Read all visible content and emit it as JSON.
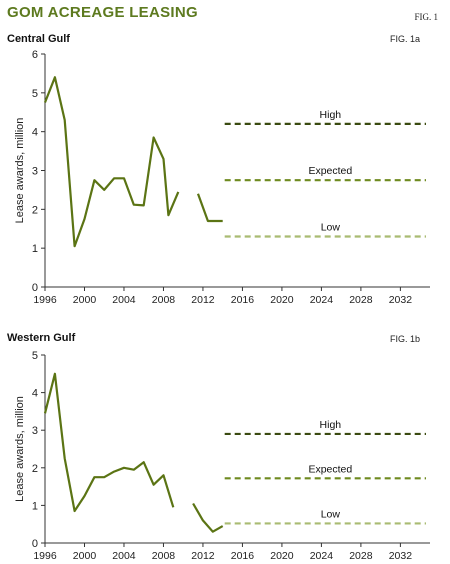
{
  "header": {
    "title": "GOM ACREAGE LEASING",
    "fig_label": "FIG. 1"
  },
  "colors": {
    "title": "#5d7a1f",
    "line": "#5b7414",
    "high": "#3a4a10",
    "expected": "#6e8a1f",
    "low": "#a9bb72",
    "axis": "#333333"
  },
  "chart_data": [
    {
      "type": "line",
      "title": "Central Gulf",
      "fig_label": "FIG. 1a",
      "ylabel": "Lease awards, million",
      "xlim": [
        1996,
        2035
      ],
      "ylim": [
        0,
        6
      ],
      "xticks": [
        1996,
        2000,
        2004,
        2008,
        2012,
        2016,
        2020,
        2024,
        2028,
        2032
      ],
      "yticks": [
        0,
        1,
        2,
        3,
        4,
        5,
        6
      ],
      "series": [
        {
          "segments": [
            [
              [
                1996,
                4.75
              ],
              [
                1997,
                5.4
              ],
              [
                1998,
                4.3
              ],
              [
                1999,
                1.05
              ],
              [
                2000,
                1.75
              ],
              [
                2001,
                2.75
              ],
              [
                2002,
                2.5
              ],
              [
                2003,
                2.8
              ],
              [
                2004,
                2.8
              ],
              [
                2005,
                2.12
              ],
              [
                2006,
                2.1
              ],
              [
                2007,
                3.85
              ],
              [
                2008,
                3.3
              ],
              [
                2008.5,
                1.85
              ],
              [
                2009.5,
                2.45
              ]
            ],
            [
              [
                2011.5,
                2.4
              ],
              [
                2012.5,
                1.7
              ],
              [
                2014,
                1.7
              ]
            ]
          ]
        }
      ],
      "scenarios": [
        {
          "name": "High",
          "value": 4.2,
          "x": [
            2014,
            2035
          ]
        },
        {
          "name": "Expected",
          "value": 2.75,
          "x": [
            2014,
            2035
          ]
        },
        {
          "name": "Low",
          "value": 1.3,
          "x": [
            2014,
            2035
          ]
        }
      ]
    },
    {
      "type": "line",
      "title": "Western Gulf",
      "fig_label": "FIG. 1b",
      "ylabel": "Lease awards, million",
      "xlim": [
        1996,
        2035
      ],
      "ylim": [
        0,
        5
      ],
      "xticks": [
        1996,
        2000,
        2004,
        2008,
        2012,
        2016,
        2020,
        2024,
        2028,
        2032
      ],
      "yticks": [
        0,
        1,
        2,
        3,
        4,
        5
      ],
      "series": [
        {
          "segments": [
            [
              [
                1996,
                3.45
              ],
              [
                1997,
                4.5
              ],
              [
                1998,
                2.25
              ],
              [
                1999,
                0.85
              ],
              [
                2000,
                1.25
              ],
              [
                2001,
                1.75
              ],
              [
                2002,
                1.75
              ],
              [
                2003,
                1.9
              ],
              [
                2004,
                2.0
              ],
              [
                2005,
                1.95
              ],
              [
                2006,
                2.15
              ],
              [
                2007,
                1.55
              ],
              [
                2008,
                1.8
              ],
              [
                2009,
                0.95
              ]
            ],
            [
              [
                2011,
                1.05
              ],
              [
                2012,
                0.6
              ],
              [
                2013,
                0.3
              ],
              [
                2014,
                0.45
              ]
            ]
          ]
        }
      ],
      "scenarios": [
        {
          "name": "High",
          "value": 2.9,
          "x": [
            2014,
            2035
          ]
        },
        {
          "name": "Expected",
          "value": 1.72,
          "x": [
            2014,
            2035
          ]
        },
        {
          "name": "Low",
          "value": 0.52,
          "x": [
            2014,
            2035
          ]
        }
      ]
    }
  ]
}
